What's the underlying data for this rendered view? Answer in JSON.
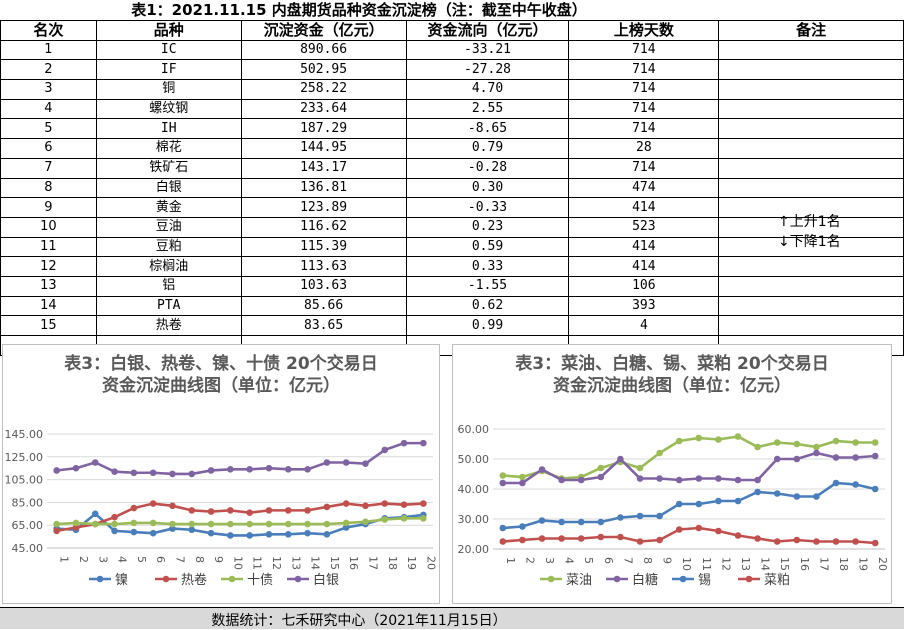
{
  "table": {
    "title": "表1：2021.11.15 内盘期货品种资金沉淀榜（注：截至中午收盘）",
    "headers": [
      "名次",
      "品种",
      "沉淀资金（亿元）",
      "资金流向（亿元）",
      "上榜天数",
      "备注"
    ],
    "rows": [
      [
        "1",
        "IC",
        "890.66",
        "-33.21",
        "714"
      ],
      [
        "2",
        "IF",
        "502.95",
        "-27.28",
        "714"
      ],
      [
        "3",
        "铜",
        "258.22",
        "4.70",
        "714"
      ],
      [
        "4",
        "螺纹钢",
        "233.64",
        "2.55",
        "714"
      ],
      [
        "5",
        "IH",
        "187.29",
        "-8.65",
        "714"
      ],
      [
        "6",
        "棉花",
        "144.95",
        "0.79",
        "28"
      ],
      [
        "7",
        "铁矿石",
        "143.17",
        "-0.28",
        "714"
      ],
      [
        "8",
        "白银",
        "136.81",
        "0.30",
        "474"
      ],
      [
        "9",
        "黄金",
        "123.89",
        "-0.33",
        "414"
      ],
      [
        "10",
        "豆油",
        "116.62",
        "0.23",
        "523"
      ],
      [
        "11",
        "豆粕",
        "115.39",
        "0.59",
        "414"
      ],
      [
        "12",
        "棕榈油",
        "113.63",
        "0.33",
        "414"
      ],
      [
        "13",
        "铝",
        "103.63",
        "-1.55",
        "106"
      ],
      [
        "14",
        "PTA",
        "85.66",
        "0.62",
        "393"
      ],
      [
        "15",
        "热卷",
        "83.65",
        "0.99",
        "4"
      ]
    ],
    "notes": {
      "up": "↑上升1名",
      "down": "↓下降1名"
    }
  },
  "footer": "数据统计：七禾研究中心（2021年11月15日）",
  "chart_data": [
    {
      "type": "line",
      "title_line1": "表3：白银、热卷、镍、十债 20个交易日",
      "title_line2": "资金沉淀曲线图（单位：亿元）",
      "x": [
        1,
        2,
        3,
        4,
        5,
        6,
        7,
        8,
        9,
        10,
        11,
        12,
        13,
        14,
        15,
        16,
        17,
        18,
        19,
        20
      ],
      "ylim": [
        45,
        145
      ],
      "yticks": [
        "145.00",
        "125.00",
        "105.00",
        "85.00",
        "65.00",
        "45.00"
      ],
      "grid": true,
      "legend": "bottom",
      "series": [
        {
          "name": "镍",
          "color": "#4a7ebb",
          "values": [
            62,
            61,
            75,
            60,
            59,
            58,
            62,
            61,
            58,
            56,
            56,
            57,
            57,
            58,
            57,
            63,
            66,
            71,
            72,
            74
          ]
        },
        {
          "name": "热卷",
          "color": "#c0504d",
          "values": [
            60,
            63,
            66,
            72,
            80,
            84,
            82,
            78,
            77,
            78,
            76,
            78,
            78,
            78,
            81,
            84,
            82,
            84,
            83,
            84
          ]
        },
        {
          "name": "十债",
          "color": "#9bbb59",
          "values": [
            66,
            67,
            66,
            66,
            67,
            67,
            66,
            66,
            66,
            66,
            66,
            66,
            66,
            66,
            66,
            67,
            68,
            70,
            71,
            71
          ]
        },
        {
          "name": "白银",
          "color": "#8064a2",
          "values": [
            113,
            115,
            120,
            112,
            111,
            111,
            110,
            110,
            113,
            114,
            114,
            115,
            114,
            114,
            120,
            120,
            119,
            131,
            137,
            137
          ]
        }
      ]
    },
    {
      "type": "line",
      "title_line1": "表3：菜油、白糖、锡、菜粕 20个交易日",
      "title_line2": "资金沉淀曲线图（单位：亿元）",
      "x": [
        1,
        2,
        3,
        4,
        5,
        6,
        7,
        8,
        9,
        10,
        11,
        12,
        13,
        14,
        15,
        16,
        17,
        18,
        19,
        20
      ],
      "ylim": [
        20,
        60
      ],
      "yticks": [
        "60.00",
        "50.00",
        "40.00",
        "30.00",
        "20.00"
      ],
      "grid": true,
      "legend": "bottom",
      "series": [
        {
          "name": "菜油",
          "color": "#9bbb59",
          "values": [
            44.5,
            44,
            46,
            43.5,
            44,
            47,
            49,
            47,
            52,
            56,
            57,
            56.5,
            57.5,
            54,
            55.5,
            55,
            54,
            56,
            55.5,
            55.5
          ]
        },
        {
          "name": "白糖",
          "color": "#8064a2",
          "values": [
            42,
            42,
            46.5,
            43,
            43,
            44,
            50,
            43.5,
            43.5,
            43,
            43.5,
            43.5,
            43,
            43,
            50,
            50,
            52,
            50.5,
            50.5,
            51
          ]
        },
        {
          "name": "锡",
          "color": "#4a7ebb",
          "values": [
            27,
            27.5,
            29.5,
            29,
            29,
            29,
            30.5,
            31,
            31,
            35,
            35,
            36,
            36,
            39,
            38.5,
            37.5,
            37.5,
            42,
            41.5,
            40
          ]
        },
        {
          "name": "菜粕",
          "color": "#c0504d",
          "values": [
            22.5,
            23,
            23.5,
            23.5,
            23.5,
            24,
            24,
            22.5,
            23,
            26.5,
            27,
            26,
            24.5,
            23.5,
            22.5,
            23,
            22.5,
            22.5,
            22.5,
            22
          ]
        }
      ]
    }
  ]
}
